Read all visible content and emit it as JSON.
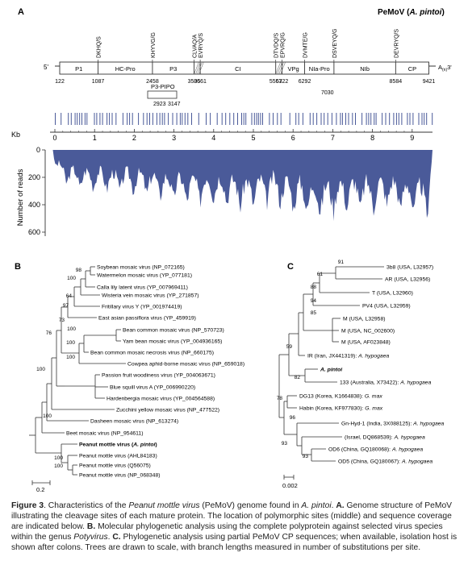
{
  "panelA": {
    "label": "A",
    "title": "PeMoV (",
    "title_species": "A. pintoi",
    "title_close": ")",
    "cleavage_sites": [
      {
        "text": "DKHQ/S",
        "pos": 1087
      },
      {
        "text": "KHYVG/G",
        "pos": 2458
      },
      {
        "text": "CLVAQ/A",
        "pos": 3505
      },
      {
        "text": "EVRYQ/S",
        "pos": 3661
      },
      {
        "text": "DTVDQ/S",
        "pos": 5563
      },
      {
        "text": "EPVRQ/G",
        "pos": 5722
      },
      {
        "text": "DVMTE/G",
        "pos": 6292
      },
      {
        "text": "DSVEYQ/G",
        "pos": 7030
      },
      {
        "text": "DEVRYQ/S",
        "pos": 8584
      }
    ],
    "five_prime": "5'",
    "three_prime": "A",
    "poly_sub": "(n)",
    "three_end": "3'",
    "proteins": [
      "P1",
      "HC-Pro",
      "P3",
      "CI",
      "VPg",
      "NIa-Pro",
      "NIb",
      "CP"
    ],
    "positions": [
      "122",
      "1087",
      "2458",
      "3505",
      "3661",
      "5563",
      "5722",
      "6292",
      "8584",
      "9421"
    ],
    "pipo_label": "P3-PIPO",
    "pipo_positions": [
      "2923",
      "3147"
    ],
    "nia_position": "7030",
    "kb_label": "Kb",
    "kb_ticks": [
      "0",
      "1",
      "2",
      "3",
      "4",
      "5",
      "6",
      "7",
      "8",
      "9"
    ],
    "reads_axis_label": "Number of reads",
    "reads_ticks": [
      "0",
      "200",
      "400",
      "600"
    ]
  },
  "panelB": {
    "label": "B",
    "taxa": [
      {
        "name": "Soybean mosaic virus (NP_072165)",
        "bold": false
      },
      {
        "name": "Watermelon mosaic virus (YP_077181)",
        "bold": false
      },
      {
        "name": "Calla lily latent virus (YP_007969411)",
        "bold": false
      },
      {
        "name": "Wisteria vein mosaic virus (YP_271857)",
        "bold": false
      },
      {
        "name": "Fritillary virus Y (YP_001974419)",
        "bold": false
      },
      {
        "name": "East asian passiflora virus (YP_459919)",
        "bold": false
      },
      {
        "name": "Bean common mosaic virus (NP_570723)",
        "bold": false
      },
      {
        "name": "Yam bean mosaic virus (YP_004936165)",
        "bold": false
      },
      {
        "name": "Bean common mosaic necrosis virus (NP_660175)",
        "bold": false
      },
      {
        "name": "Cowpea aphid-borne mosaic virus (NP_659018)",
        "bold": false
      },
      {
        "name": "Passion fruit woodiness virus (YP_004063671)",
        "bold": false
      },
      {
        "name": "Blue squill virus A (YP_006990220)",
        "bold": false
      },
      {
        "name": "Hardenbergia mosaic virus (YP_004564588)",
        "bold": false
      },
      {
        "name": "Zucchini yellow mosaic virus (NP_477522)",
        "bold": false
      },
      {
        "name": "Dasheen mosaic virus (NP_613274)",
        "bold": false
      },
      {
        "name": "Beet mosaic virus (NP_954611)",
        "bold": false
      },
      {
        "name": "Peanut mottle virus (",
        "species": "A. pintoi",
        "close": ")",
        "bold": true
      },
      {
        "name": "Peanut mottle virus (AHL84183)",
        "bold": false
      },
      {
        "name": "Peanut mottle virus (Q56075)",
        "bold": false
      },
      {
        "name": "Peanut mottle virus (NP_068348)",
        "bold": false
      }
    ],
    "bootstraps": [
      "98",
      "100",
      "64",
      "97",
      "73",
      "100",
      "100",
      "100",
      "76",
      "100",
      "100",
      "100",
      "100"
    ],
    "scale": "0.2"
  },
  "panelC": {
    "label": "C",
    "taxa": [
      {
        "name": "3b8 (USA, L32957)",
        "species": ""
      },
      {
        "name": "AR (USA, L32956)",
        "species": ""
      },
      {
        "name": "T (USA, L32960)",
        "species": ""
      },
      {
        "name": "PV4 (USA, L32959)",
        "species": ""
      },
      {
        "name": "M (USA, L32958)",
        "species": ""
      },
      {
        "name": "M (USA, NC_002600)",
        "species": ""
      },
      {
        "name": "M (USA, AF023848)",
        "species": ""
      },
      {
        "name": "IR (Iran, JX441319): ",
        "species": "A. hypogaea"
      },
      {
        "name": "",
        "species": "A. pintoi",
        "bold": true
      },
      {
        "name": "133 (Australia, X73422): ",
        "species": "A. hypogaea"
      },
      {
        "name": "DG13 (Korea, K1664838): ",
        "species": "G. max"
      },
      {
        "name": "Habin (Korea, KF977830): ",
        "species": "G. max"
      },
      {
        "name": "Gn-Hyd-1 (India, 3X088125): ",
        "species": "A. hypogaea"
      },
      {
        "name": "(Israel, DQ868539): ",
        "species": "A. hypogaea"
      },
      {
        "name": "OD6 (China, GQ180068): ",
        "species": "A. hypogaea"
      },
      {
        "name": "OD5 (China, GQ180067): ",
        "species": "A. hypogaea"
      }
    ],
    "bootstraps": [
      "91",
      "61",
      "88",
      "94",
      "85",
      "59",
      "82",
      "78",
      "96",
      "93",
      "93"
    ],
    "scale": "0.002"
  },
  "caption": {
    "figure_label": "Figure 3",
    "seg1": ". Characteristics of the ",
    "virus_italic": "Peanut mottle virus",
    "seg2": " (PeMoV) genome found in ",
    "host_italic": "A. pintoi",
    "seg3": ". ",
    "a_label": "A.",
    "a_text": " Genome structure of PeMoV illustrating the cleavage sites of each mature protein. The location of polymorphic sites (middle) and sequence coverage are indicated below. ",
    "b_label": "B.",
    "b_text": " Molecular phylogenetic analysis using the complete polyprotein against selected virus species within the genus ",
    "genus_italic": "Potyvirus",
    "b_end": ". ",
    "c_label": "C.",
    "c_text": " Phylogenetic analysis using partial PeMoV CP sequences; when available, isolation host is shown after colons. Trees are drawn to scale, with branch lengths measured in number of substitutions per site."
  },
  "colors": {
    "coverage": "#4a5a99",
    "polymorphism": "#4a5a99",
    "line": "#333333"
  }
}
